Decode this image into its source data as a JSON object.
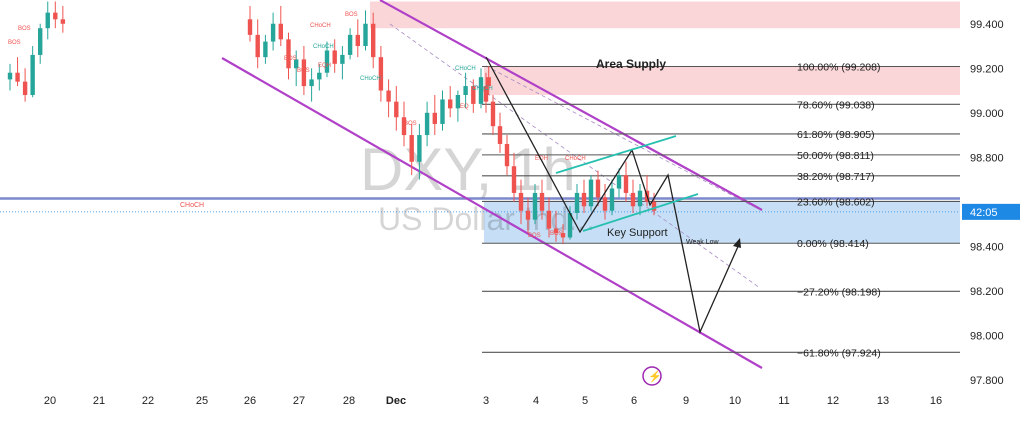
{
  "chart_data": {
    "type": "candlestick",
    "title": "",
    "watermark": {
      "symbol": "DXY, 1h",
      "name": "US Dollar Ind..."
    },
    "xlabel": "",
    "ylabel": "",
    "ylim": [
      97.7,
      99.5
    ],
    "y_ticks": [
      97.8,
      98.0,
      98.2,
      98.4,
      98.6,
      98.8,
      99.0,
      99.2,
      99.4
    ],
    "y_tick_labels": [
      "97.800",
      "98.000",
      "98.200",
      "98.400",
      "98.600",
      "98.800",
      "99.000",
      "99.200",
      "99.400"
    ],
    "x_ticks": [
      "20",
      "21",
      "22",
      "25",
      "26",
      "27",
      "28",
      "Dec",
      "3",
      "4",
      "5",
      "6",
      "9",
      "10",
      "11",
      "12",
      "13",
      "16"
    ],
    "grid": false,
    "current_price": {
      "value": 98.555,
      "countdown": "42:05",
      "color": "#1e88e5"
    },
    "horizontal_level": {
      "value": 98.615,
      "color": "#5c6bc0"
    },
    "fibonacci": {
      "levels": [
        {
          "label": "100.00% (99.208)",
          "value": 99.208
        },
        {
          "label": "78.60% (99.038)",
          "value": 99.038
        },
        {
          "label": "61.80% (98.905)",
          "value": 98.905
        },
        {
          "label": "50.00% (98.811)",
          "value": 98.811
        },
        {
          "label": "38.20% (98.717)",
          "value": 98.717
        },
        {
          "label": "23.60% (98.602)",
          "value": 98.602
        },
        {
          "label": "0.00% (98.414)",
          "value": 98.414
        },
        {
          "label": "−27.20% (98.198)",
          "value": 98.198
        },
        {
          "label": "−61.80% (97.924)",
          "value": 97.924
        }
      ]
    },
    "zones": [
      {
        "name": "Area Supply",
        "from": 99.08,
        "to": 99.21,
        "color": "#f8c8cc"
      },
      {
        "name": "",
        "from": 99.38,
        "to": 99.5,
        "color": "#f8c8cc"
      },
      {
        "name": "",
        "from": 98.414,
        "to": 98.602,
        "color": "#bcd9f5"
      }
    ],
    "annotations": {
      "area_supply": "Area Supply",
      "key_support": "Key Support",
      "weak_low": "Weak Low",
      "structure_labels": [
        "BOS",
        "BOS",
        "CHoCH",
        "BOS",
        "BOS",
        "CHoCH",
        "BOS",
        "CHoCH",
        "EQH",
        "CHoCH",
        "EQ",
        "CHoCH",
        "BOS",
        "BOS",
        "CHoCH",
        "BOS",
        "EQH"
      ]
    },
    "series": [
      {
        "candles": [
          [
            99.15,
            99.22,
            99.1,
            99.18
          ],
          [
            99.18,
            99.25,
            99.12,
            99.14
          ],
          [
            99.14,
            99.2,
            99.05,
            99.08
          ],
          [
            99.08,
            99.3,
            99.07,
            99.26
          ],
          [
            99.26,
            99.4,
            99.22,
            99.38
          ],
          [
            99.38,
            99.5,
            99.33,
            99.45
          ],
          [
            99.45,
            99.5,
            99.38,
            99.42
          ],
          [
            99.42,
            99.48,
            99.36,
            99.4
          ],
          [
            99.42,
            99.48,
            99.32,
            99.35
          ],
          [
            99.35,
            99.42,
            99.2,
            99.25
          ],
          [
            99.25,
            99.35,
            99.22,
            99.32
          ],
          [
            99.32,
            99.45,
            99.28,
            99.4
          ],
          [
            99.4,
            99.48,
            99.3,
            99.33
          ],
          [
            99.33,
            99.36,
            99.15,
            99.2
          ],
          [
            99.2,
            99.28,
            99.12,
            99.24
          ],
          [
            99.24,
            99.3,
            99.08,
            99.12
          ],
          [
            99.12,
            99.2,
            99.05,
            99.15
          ],
          [
            99.15,
            99.22,
            99.1,
            99.18
          ],
          [
            99.18,
            99.32,
            99.16,
            99.28
          ],
          [
            99.28,
            99.33,
            99.18,
            99.22
          ],
          [
            99.22,
            99.3,
            99.15,
            99.26
          ],
          [
            99.26,
            99.38,
            99.24,
            99.35
          ],
          [
            99.35,
            99.42,
            99.25,
            99.3
          ],
          [
            99.3,
            99.46,
            99.28,
            99.4
          ],
          [
            99.4,
            99.45,
            99.2,
            99.25
          ],
          [
            99.25,
            99.3,
            99.05,
            99.1
          ],
          [
            99.1,
            99.15,
            98.98,
            99.05
          ],
          [
            99.05,
            99.12,
            98.92,
            98.98
          ],
          [
            98.98,
            99.05,
            98.85,
            98.9
          ],
          [
            98.9,
            98.95,
            98.72,
            98.78
          ],
          [
            98.78,
            98.95,
            98.7,
            98.9
          ],
          [
            98.9,
            99.05,
            98.85,
            99.0
          ],
          [
            99.0,
            99.08,
            98.9,
            98.95
          ],
          [
            98.95,
            99.1,
            98.92,
            99.06
          ],
          [
            99.06,
            99.12,
            98.98,
            99.02
          ],
          [
            99.02,
            99.1,
            98.96,
            99.08
          ],
          [
            99.08,
            99.18,
            99.02,
            99.12
          ],
          [
            99.12,
            99.15,
            99.0,
            99.04
          ],
          [
            99.04,
            99.2,
            99.02,
            99.16
          ],
          [
            99.16,
            99.21,
            99.08,
            99.12
          ],
          [
            99.12,
            99.18,
            99.0,
            99.05
          ],
          [
            99.05,
            99.08,
            98.9,
            98.94
          ],
          [
            98.94,
            99.0,
            98.82,
            98.86
          ],
          [
            98.86,
            98.9,
            98.72,
            98.76
          ],
          [
            98.76,
            98.82,
            98.6,
            98.64
          ],
          [
            98.64,
            98.7,
            98.5,
            98.56
          ],
          [
            98.56,
            98.62,
            98.46,
            98.52
          ],
          [
            98.52,
            98.68,
            98.5,
            98.64
          ],
          [
            98.64,
            98.7,
            98.52,
            98.56
          ],
          [
            98.56,
            98.62,
            98.44,
            98.48
          ],
          [
            98.48,
            98.56,
            98.42,
            98.46
          ],
          [
            98.46,
            98.5,
            98.41,
            98.44
          ],
          [
            98.44,
            98.58,
            98.43,
            98.55
          ],
          [
            98.55,
            98.68,
            98.52,
            98.64
          ],
          [
            98.64,
            98.7,
            98.55,
            98.58
          ],
          [
            98.58,
            98.72,
            98.56,
            98.7
          ],
          [
            98.7,
            98.74,
            98.58,
            98.62
          ],
          [
            98.62,
            98.68,
            98.52,
            98.56
          ],
          [
            98.56,
            98.7,
            98.54,
            98.66
          ],
          [
            98.66,
            98.75,
            98.62,
            98.72
          ],
          [
            98.72,
            98.78,
            98.6,
            98.64
          ],
          [
            98.64,
            98.7,
            98.55,
            98.58
          ],
          [
            98.58,
            98.68,
            98.54,
            98.65
          ],
          [
            98.65,
            98.72,
            98.58,
            98.6
          ],
          [
            98.6,
            98.64,
            98.54,
            98.56
          ]
        ]
      }
    ]
  }
}
